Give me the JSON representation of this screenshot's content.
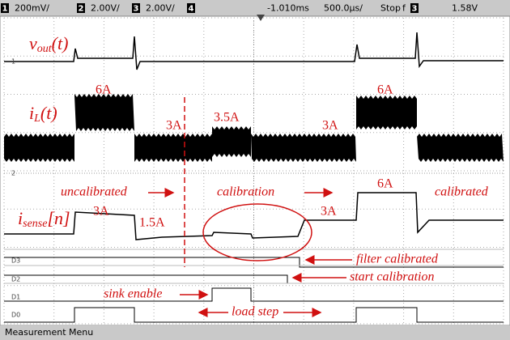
{
  "header": {
    "ch1": "1",
    "ch1_scale": "200mV/",
    "ch2": "2",
    "ch2_scale": "2.00V/",
    "ch3": "3",
    "ch3_scale": "2.00V/",
    "ch4": "4",
    "delay": "-1.010ms",
    "timebase": "500.0µs/",
    "status": "Stop",
    "trigger_slope": "f",
    "trigger_source": "3",
    "trigger_level": "1.58V"
  },
  "channel_markers": [
    "1",
    "2",
    "D3",
    "D2",
    "D1",
    "D0"
  ],
  "signals": {
    "vout": {
      "symbol": "v",
      "sub": "out",
      "arg": "(t)"
    },
    "il": {
      "symbol": "i",
      "sub": "L",
      "arg": "(t)"
    },
    "isense": {
      "symbol": "i",
      "sub": "sense",
      "arg": "[n]"
    }
  },
  "annotations": [
    "6A",
    "3A",
    "3.5A",
    "3A",
    "6A",
    "uncalibrated",
    "calibration",
    "calibrated",
    "6A",
    "3A",
    "1.5A",
    "3A",
    "filter calibrated",
    "start calibration",
    "sink enable",
    "load step"
  ],
  "footer": "Measurement Menu"
}
